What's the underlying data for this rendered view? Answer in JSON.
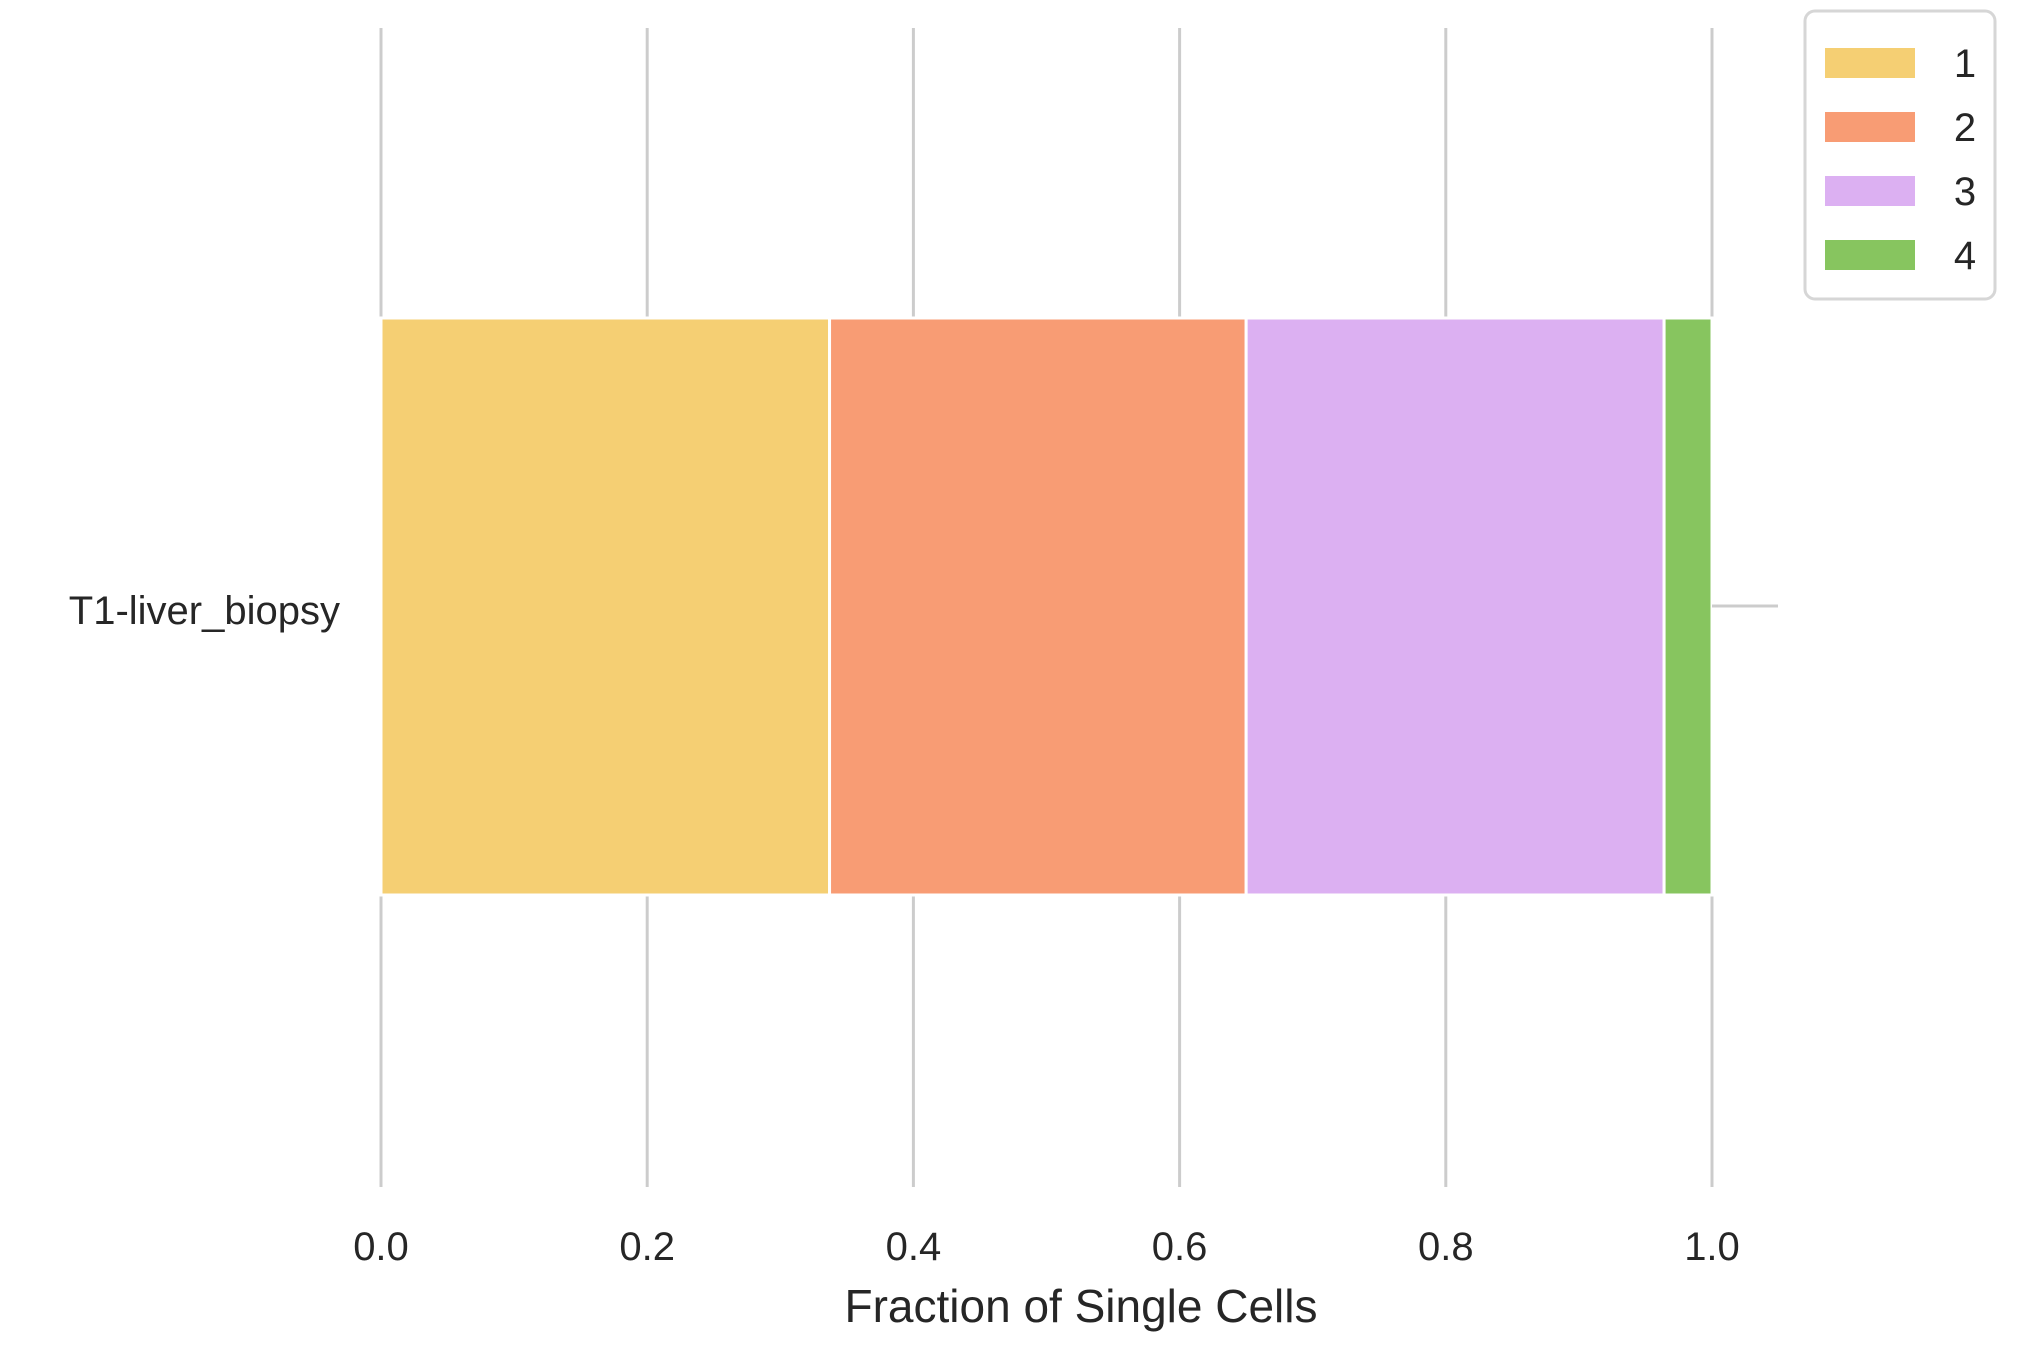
{
  "chart_data": {
    "type": "bar",
    "orientation": "horizontal",
    "stacked": true,
    "categories": [
      "T1-liver_biopsy"
    ],
    "series": [
      {
        "name": "1",
        "values": [
          0.337
        ],
        "color": "#F5CF73"
      },
      {
        "name": "2",
        "values": [
          0.313
        ],
        "color": "#F89C74"
      },
      {
        "name": "3",
        "values": [
          0.314
        ],
        "color": "#DCB0F2"
      },
      {
        "name": "4",
        "values": [
          0.036
        ],
        "color": "#87C55F"
      }
    ],
    "xlabel": "Fraction of Single Cells",
    "ylabel": "",
    "title": "",
    "xlim": [
      0,
      1.0
    ],
    "xticks": [
      "0.0",
      "0.2",
      "0.4",
      "0.6",
      "0.8",
      "1.0"
    ],
    "grid": "vertical",
    "legend": "top-right outside"
  }
}
